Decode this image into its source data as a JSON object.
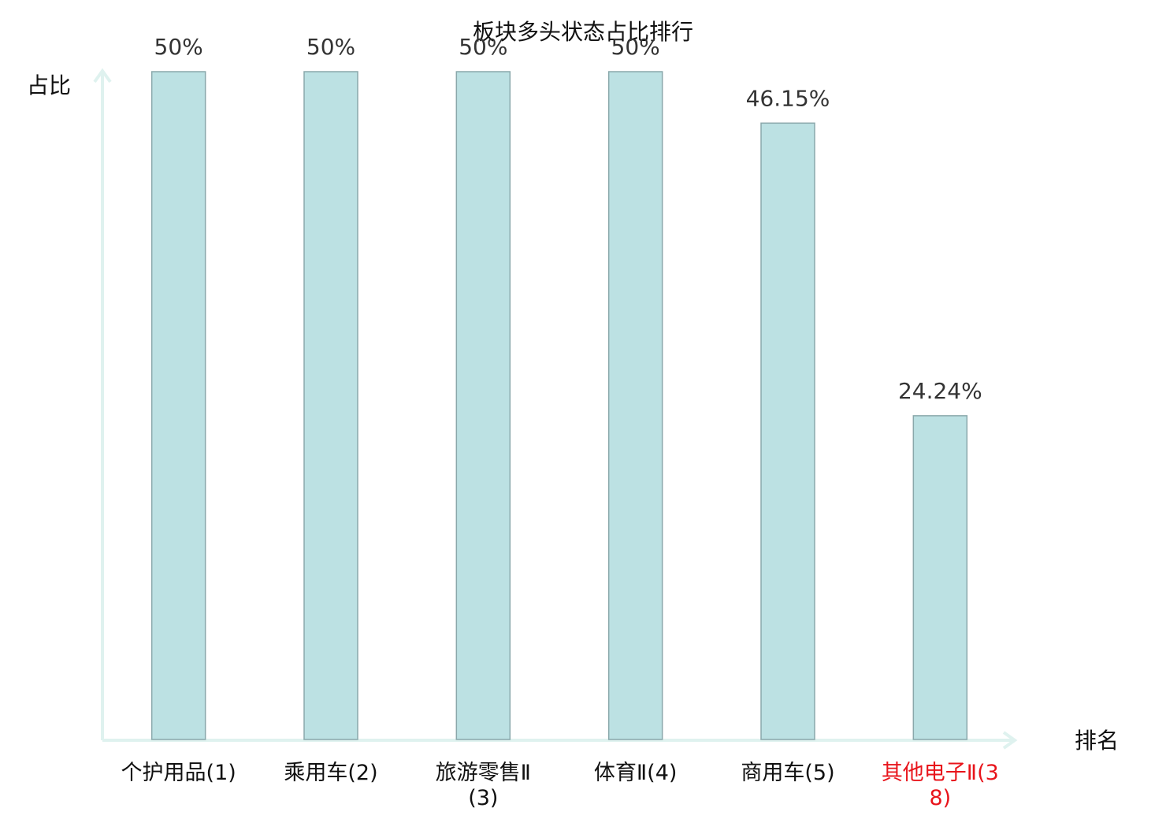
{
  "chart_data": {
    "type": "bar",
    "title": "板块多头状态占比排行",
    "y_label": "占比",
    "x_label": "排名",
    "categories": [
      "个护用品(1)",
      "乘用车(2)",
      "旅游零售Ⅱ(3)",
      "体育Ⅱ(4)",
      "商用车(5)",
      "其他电子Ⅱ(38)"
    ],
    "category_colors": [
      "#111111",
      "#111111",
      "#111111",
      "#111111",
      "#111111",
      "#e8141b"
    ],
    "values": [
      50,
      50,
      50,
      50,
      46.15,
      24.24
    ],
    "value_labels": [
      "50%",
      "50%",
      "50%",
      "50%",
      "46.15%",
      "24.24%"
    ],
    "color": "#bce1e3",
    "ylim": [
      0,
      50
    ]
  }
}
